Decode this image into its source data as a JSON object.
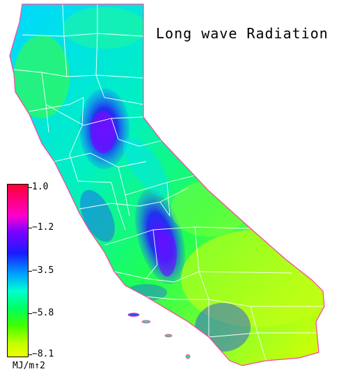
{
  "title": "Long wave Radiation",
  "legend": {
    "ticks": [
      {
        "value": "1.0",
        "pos": 0.02
      },
      {
        "value": "−1.2",
        "pos": 0.255
      },
      {
        "value": "−3.5",
        "pos": 0.5
      },
      {
        "value": "−5.8",
        "pos": 0.745
      },
      {
        "value": "−8.1",
        "pos": 0.985
      }
    ],
    "unit": "MJ/m↑2"
  },
  "colors": {
    "state_fill": "#00e8c0",
    "county_lines": "#ffffff",
    "valley_low": "#2a20e8",
    "valley_mid": "#1a5cff",
    "desert": "#b8ff20",
    "coast_green": "#30ff40"
  }
}
